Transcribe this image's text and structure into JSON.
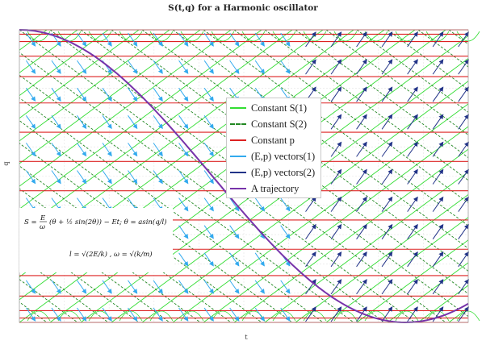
{
  "chart_data": {
    "type": "line",
    "title": "S(t,q) for a Harmonic oscillator",
    "xlabel": "t",
    "ylabel": "q",
    "grid": true,
    "legend_placement": "center",
    "legend": [
      {
        "name": "Constant S(1)",
        "color": "#33dd33",
        "style": "solid"
      },
      {
        "name": "Constant S(2)",
        "color": "#228822",
        "style": "dashed"
      },
      {
        "name": "Constant p",
        "color": "#dd2222",
        "style": "solid"
      },
      {
        "name": "(E,p) vectors(1)",
        "color": "#33aaee",
        "style": "solid"
      },
      {
        "name": "(E,p) vectors(2)",
        "color": "#223388",
        "style": "solid"
      },
      {
        "name": "A trajectory",
        "color": "#7733aa",
        "style": "solid"
      }
    ],
    "trajectory": {
      "name": "A trajectory",
      "description_free": true,
      "shape": "cosine",
      "x_range_fraction": [
        0.0,
        1.0
      ],
      "q_start": 1.0,
      "q_min": -1.0
    },
    "constant_p_levels": [
      1.0,
      0.97,
      0.92,
      0.82,
      0.68,
      0.5,
      0.3,
      0.1,
      -0.1,
      -0.3,
      -0.5,
      -0.68,
      -0.82,
      -0.92,
      -0.97,
      -1.0
    ]
  },
  "formula": {
    "line1_lhs": "S =",
    "line1_frac_num": "E",
    "line1_frac_den": "ω",
    "line1_body": "(θ + ½ sin(2θ)) − Et; θ = asin(q/l)",
    "line2": "l = √(2E/k) , ω = √(k/m)"
  }
}
